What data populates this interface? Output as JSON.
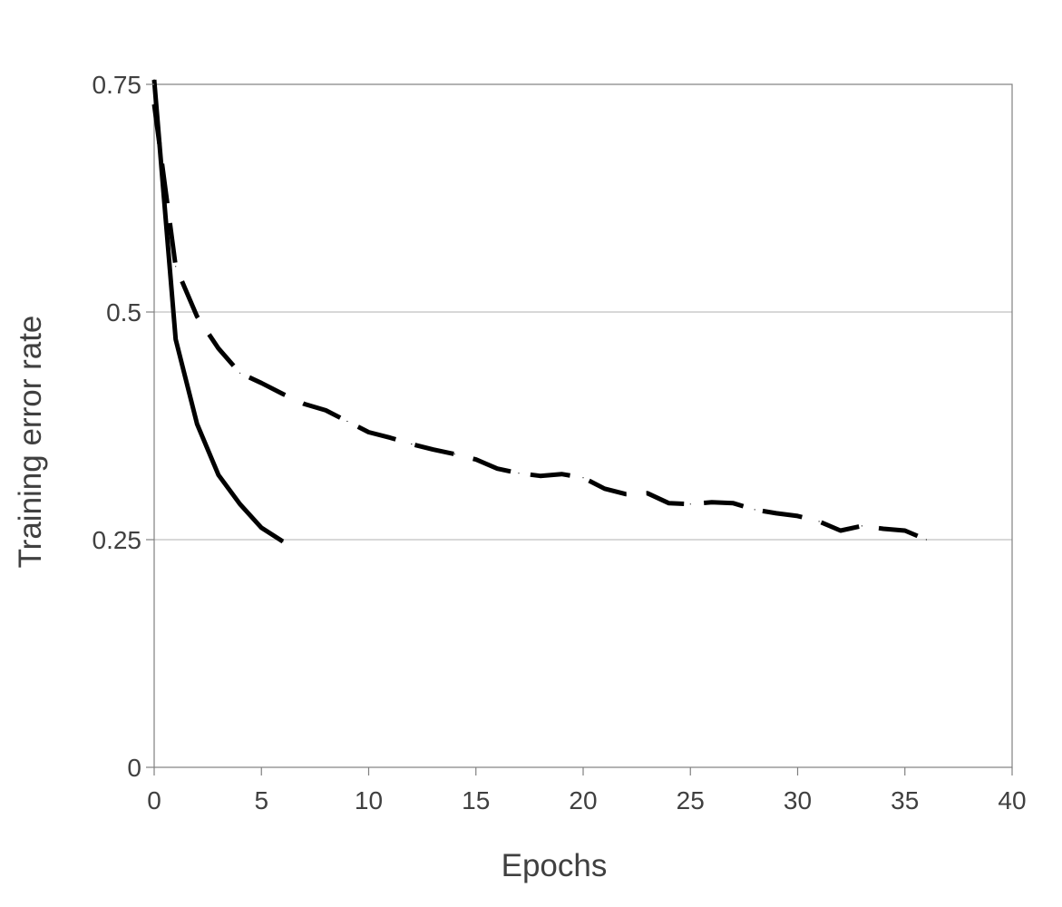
{
  "chart_data": {
    "type": "line",
    "title": "",
    "xlabel": "Epochs",
    "ylabel": "Training error rate",
    "xlim": [
      0,
      40
    ],
    "ylim": [
      0,
      0.75
    ],
    "xticks": [
      {
        "value": 0,
        "label": "0"
      },
      {
        "value": 5,
        "label": "5"
      },
      {
        "value": 10,
        "label": "10"
      },
      {
        "value": 15,
        "label": "15"
      },
      {
        "value": 20,
        "label": "20"
      },
      {
        "value": 25,
        "label": "25"
      },
      {
        "value": 30,
        "label": "30"
      },
      {
        "value": 35,
        "label": "35"
      },
      {
        "value": 40,
        "label": "40"
      }
    ],
    "yticks": [
      {
        "value": 0,
        "label": "0"
      },
      {
        "value": 0.25,
        "label": "0.25"
      },
      {
        "value": 0.5,
        "label": "0.5"
      },
      {
        "value": 0.75,
        "label": "0.75"
      }
    ],
    "grid": "horizontal",
    "legend": "none",
    "series": [
      {
        "style": "solid",
        "color": "#000000",
        "x": [
          0,
          1,
          2,
          3,
          4,
          5,
          6
        ],
        "y": [
          0.755,
          0.47,
          0.377,
          0.321,
          0.289,
          0.263,
          0.248
        ]
      },
      {
        "style": "dashed",
        "color": "#000000",
        "x": [
          0,
          1,
          2,
          3,
          4,
          5,
          6,
          7,
          8,
          9,
          10,
          11,
          12,
          13,
          14,
          15,
          16,
          17,
          18,
          19,
          20,
          21,
          22,
          23,
          24,
          25,
          26,
          27,
          28,
          29,
          30,
          31,
          32,
          33,
          34,
          35,
          36
        ],
        "y": [
          0.728,
          0.55,
          0.495,
          0.46,
          0.433,
          0.422,
          0.41,
          0.399,
          0.392,
          0.38,
          0.368,
          0.362,
          0.355,
          0.349,
          0.344,
          0.338,
          0.328,
          0.323,
          0.32,
          0.322,
          0.318,
          0.306,
          0.3,
          0.301,
          0.29,
          0.289,
          0.291,
          0.29,
          0.283,
          0.279,
          0.276,
          0.27,
          0.26,
          0.265,
          0.262,
          0.26,
          0.25
        ]
      }
    ]
  },
  "colors": {
    "gridline": "#c0c0c0",
    "axis": "#808080",
    "text": "#404040"
  }
}
